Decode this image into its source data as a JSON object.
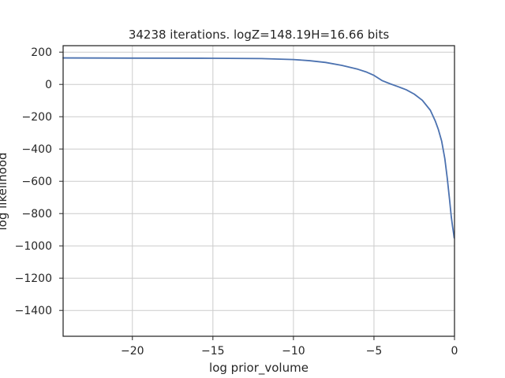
{
  "chart_data": {
    "type": "line",
    "title": "34238 iterations. logZ=148.19H=16.66 bits",
    "xlabel": "log prior_volume",
    "ylabel": "log likelihood",
    "xlim": [
      -24.3,
      0
    ],
    "ylim": [
      -1560,
      240
    ],
    "grid": true,
    "xticks": [
      -20,
      -15,
      -10,
      -5,
      0
    ],
    "xtick_labels": [
      "−20",
      "−15",
      "−10",
      "−5",
      "0"
    ],
    "yticks": [
      200,
      0,
      -200,
      -400,
      -600,
      -800,
      -1000,
      -1200,
      -1400
    ],
    "ytick_labels": [
      "200",
      "0",
      "−200",
      "−400",
      "−600",
      "−800",
      "−1000",
      "−1200",
      "−1400"
    ],
    "series": [
      {
        "color": "#4c72b0",
        "x": [
          -24.3,
          -20,
          -15,
          -12,
          -10,
          -9,
          -8,
          -7,
          -6,
          -5.5,
          -5,
          -4.5,
          -4,
          -3.5,
          -3,
          -2.5,
          -2,
          -1.5,
          -1.2,
          -1,
          -0.8,
          -0.6,
          -0.45,
          -0.3,
          -0.2,
          -0.12,
          -0.06,
          -0.02
        ],
        "y": [
          164,
          163,
          162,
          160,
          154,
          147,
          136,
          118,
          94,
          78,
          56,
          24,
          4,
          -14,
          -33,
          -60,
          -98,
          -160,
          -225,
          -280,
          -350,
          -460,
          -580,
          -720,
          -820,
          -880,
          -920,
          -950
        ]
      }
    ]
  }
}
